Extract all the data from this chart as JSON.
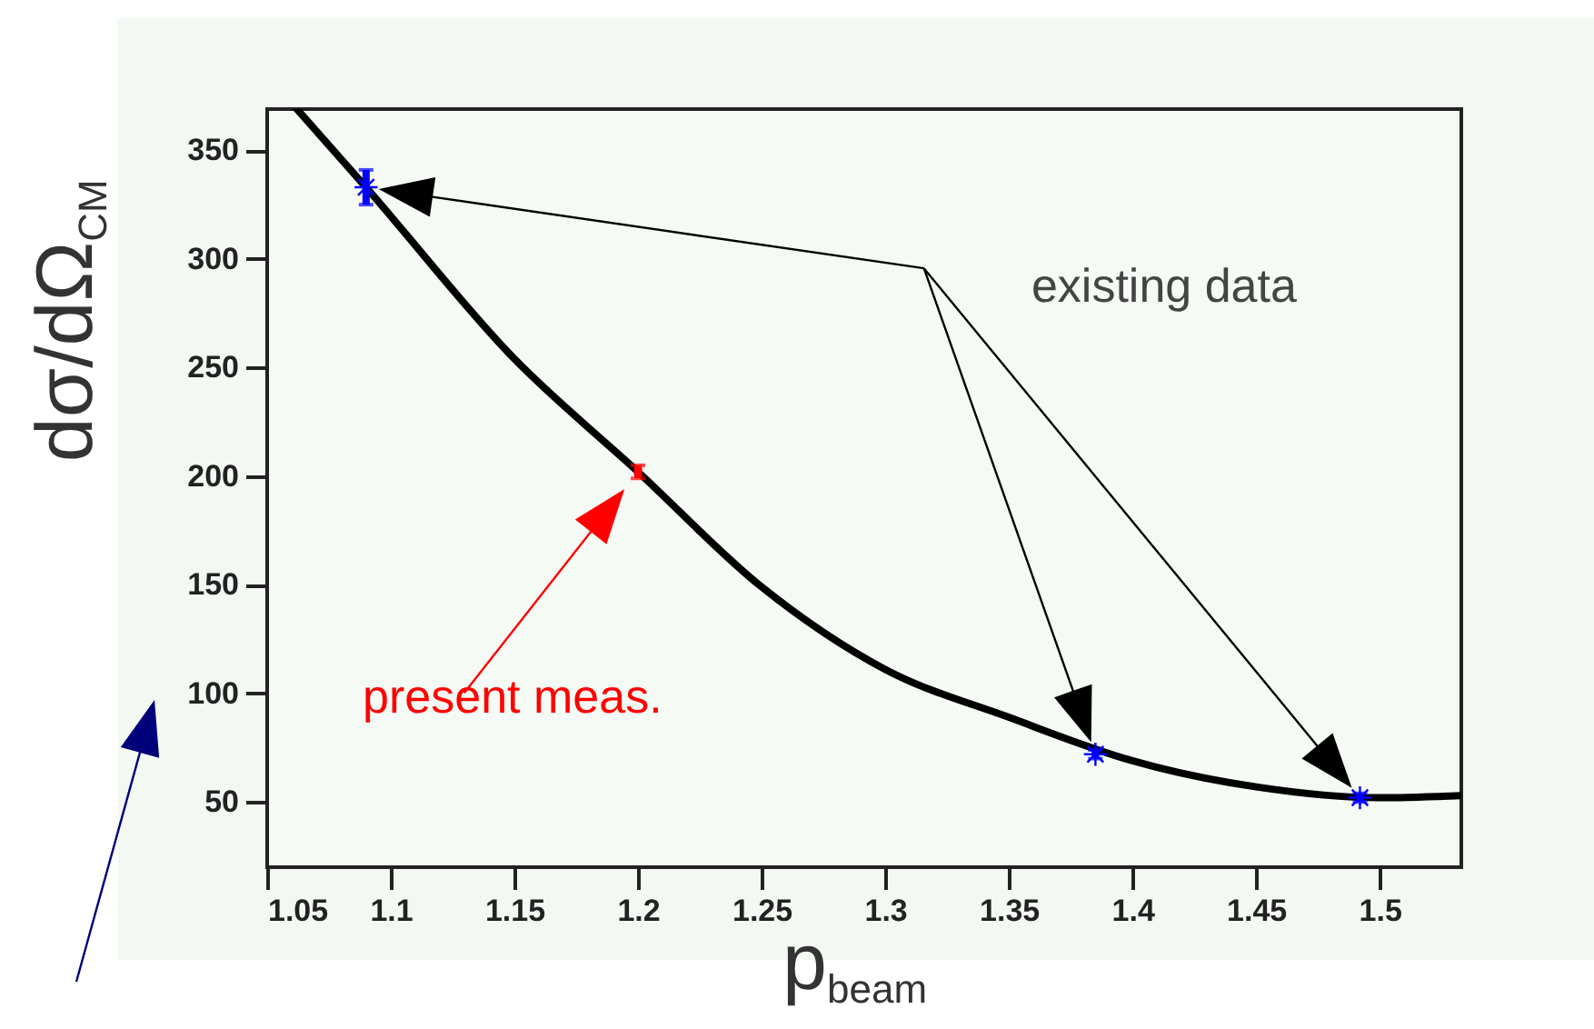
{
  "chart_data": {
    "type": "line",
    "xlabel": "p$_{beam}$",
    "ylabel": "dσ/dΩ$_{CM}$",
    "xlim": [
      1.05,
      1.533
    ],
    "xticks": [
      1.05,
      1.1,
      1.15,
      1.2,
      1.25,
      1.3,
      1.35,
      1.4,
      1.45,
      1.5
    ],
    "ylim": [
      20,
      369
    ],
    "yticks": [
      50,
      100,
      150,
      200,
      250,
      300,
      350
    ],
    "grid": false,
    "annotations": [
      "existing data"
    ],
    "series": [
      {
        "type": "line",
        "color": "#000000",
        "x": [
          1.062,
          1.09,
          1.15,
          1.2,
          1.25,
          1.3,
          1.35,
          1.4,
          1.45,
          1.5,
          1.533
        ],
        "values": [
          369,
          333,
          254,
          202,
          149,
          111,
          89,
          69,
          57,
          52,
          53
        ]
      },
      {
        "type": "scatter",
        "color": "#0000ff",
        "marker": "cross",
        "x": [
          1.09,
          1.385,
          1.492
        ],
        "values": [
          333,
          72,
          52
        ],
        "errors": [
          8,
          2,
          2
        ]
      },
      {
        "type": "scatter",
        "name": "present meas.",
        "color": "#ff0000",
        "marker": "square",
        "x": [
          1.2
        ],
        "values": [
          202
        ],
        "errors": [
          3
        ]
      }
    ]
  }
}
